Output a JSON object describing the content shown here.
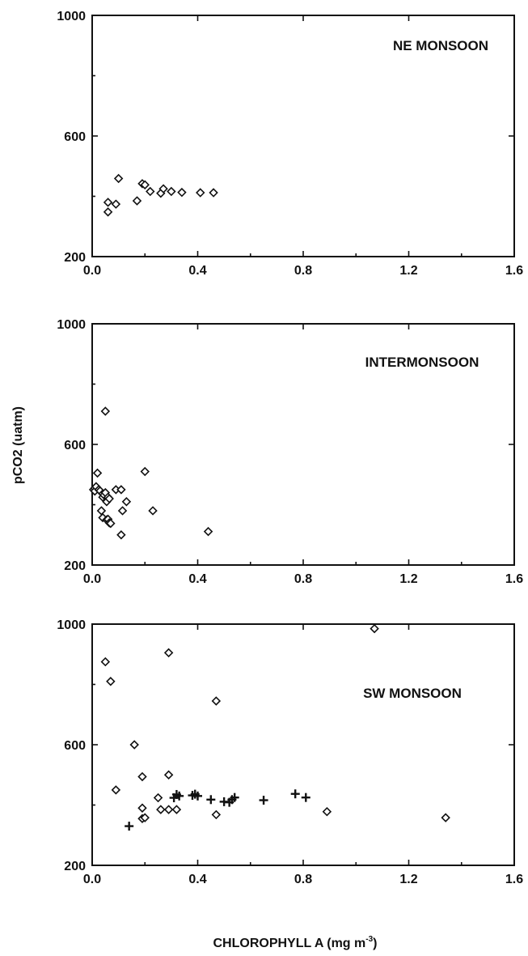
{
  "figure": {
    "ylabel": "pCO2 (uatm)",
    "xlabel_main": "CHLOROPHYLL A (mg m",
    "xlabel_sup": "-3",
    "xlabel_close": ")"
  },
  "colors": {
    "axis": "#111111",
    "marker_fill": "#ffffff",
    "background": "#ffffff"
  },
  "chart_data": [
    {
      "type": "scatter",
      "title": "NE MONSOON",
      "xlim": [
        0,
        1.6
      ],
      "ylim": [
        200,
        1000
      ],
      "xticks": [
        "0.0",
        "0.4",
        "0.8",
        "1.2",
        "1.6"
      ],
      "yticks": [
        "200",
        "600",
        "1000"
      ],
      "grid": false,
      "series": [
        {
          "marker": "diamond",
          "points": [
            [
              0.06,
              380
            ],
            [
              0.06,
              348
            ],
            [
              0.09,
              374
            ],
            [
              0.1,
              459
            ],
            [
              0.17,
              385
            ],
            [
              0.19,
              442
            ],
            [
              0.2,
              438
            ],
            [
              0.22,
              416
            ],
            [
              0.26,
              410
            ],
            [
              0.27,
              425
            ],
            [
              0.3,
              416
            ],
            [
              0.34,
              413
            ],
            [
              0.41,
              412
            ],
            [
              0.46,
              412
            ]
          ]
        }
      ]
    },
    {
      "type": "scatter",
      "title": "INTERMONSOON",
      "xlim": [
        0,
        1.6
      ],
      "ylim": [
        200,
        1000
      ],
      "xticks": [
        "0.0",
        "0.4",
        "0.8",
        "1.2",
        "1.6"
      ],
      "yticks": [
        "200",
        "600",
        "1000"
      ],
      "grid": false,
      "series": [
        {
          "marker": "diamond",
          "points": [
            [
              0.005,
              450
            ],
            [
              0.01,
              455
            ],
            [
              0.01,
              445
            ],
            [
              0.015,
              460
            ],
            [
              0.02,
              505
            ],
            [
              0.025,
              450
            ],
            [
              0.03,
              446
            ],
            [
              0.035,
              380
            ],
            [
              0.04,
              436
            ],
            [
              0.04,
              425
            ],
            [
              0.04,
              357
            ],
            [
              0.045,
              432
            ],
            [
              0.05,
              440
            ],
            [
              0.05,
              710
            ],
            [
              0.055,
              410
            ],
            [
              0.055,
              350
            ],
            [
              0.06,
              425
            ],
            [
              0.06,
              352
            ],
            [
              0.065,
              340
            ],
            [
              0.065,
              420
            ],
            [
              0.07,
              338
            ],
            [
              0.09,
              450
            ],
            [
              0.11,
              450
            ],
            [
              0.11,
              300
            ],
            [
              0.115,
              380
            ],
            [
              0.13,
              410
            ],
            [
              0.2,
              510
            ],
            [
              0.23,
              380
            ],
            [
              0.44,
              311
            ]
          ]
        }
      ]
    },
    {
      "type": "scatter",
      "title": "SW MONSOON",
      "xlim": [
        0,
        1.6
      ],
      "ylim": [
        200,
        1000
      ],
      "xticks": [
        "0.0",
        "0.4",
        "0.8",
        "1.2",
        "1.6"
      ],
      "yticks": [
        "200",
        "600",
        "1000"
      ],
      "grid": false,
      "series": [
        {
          "marker": "diamond",
          "points": [
            [
              0.05,
              875
            ],
            [
              0.07,
              810
            ],
            [
              0.09,
              450
            ],
            [
              0.16,
              600
            ],
            [
              0.19,
              494
            ],
            [
              0.19,
              390
            ],
            [
              0.19,
              355
            ],
            [
              0.2,
              358
            ],
            [
              0.25,
              424
            ],
            [
              0.26,
              385
            ],
            [
              0.29,
              905
            ],
            [
              0.29,
              500
            ],
            [
              0.29,
              385
            ],
            [
              0.32,
              385
            ],
            [
              0.47,
              745
            ],
            [
              0.47,
              368
            ],
            [
              0.89,
              378
            ],
            [
              1.07,
              985
            ],
            [
              1.34,
              358
            ]
          ]
        },
        {
          "marker": "plus",
          "points": [
            [
              0.14,
              330
            ],
            [
              0.31,
              424
            ],
            [
              0.32,
              435
            ],
            [
              0.33,
              430
            ],
            [
              0.38,
              432
            ],
            [
              0.39,
              436
            ],
            [
              0.4,
              430
            ],
            [
              0.45,
              418
            ],
            [
              0.5,
              411
            ],
            [
              0.52,
              409
            ],
            [
              0.53,
              418
            ],
            [
              0.54,
              425
            ],
            [
              0.65,
              416
            ],
            [
              0.77,
              437
            ],
            [
              0.81,
              425
            ]
          ]
        }
      ]
    }
  ]
}
